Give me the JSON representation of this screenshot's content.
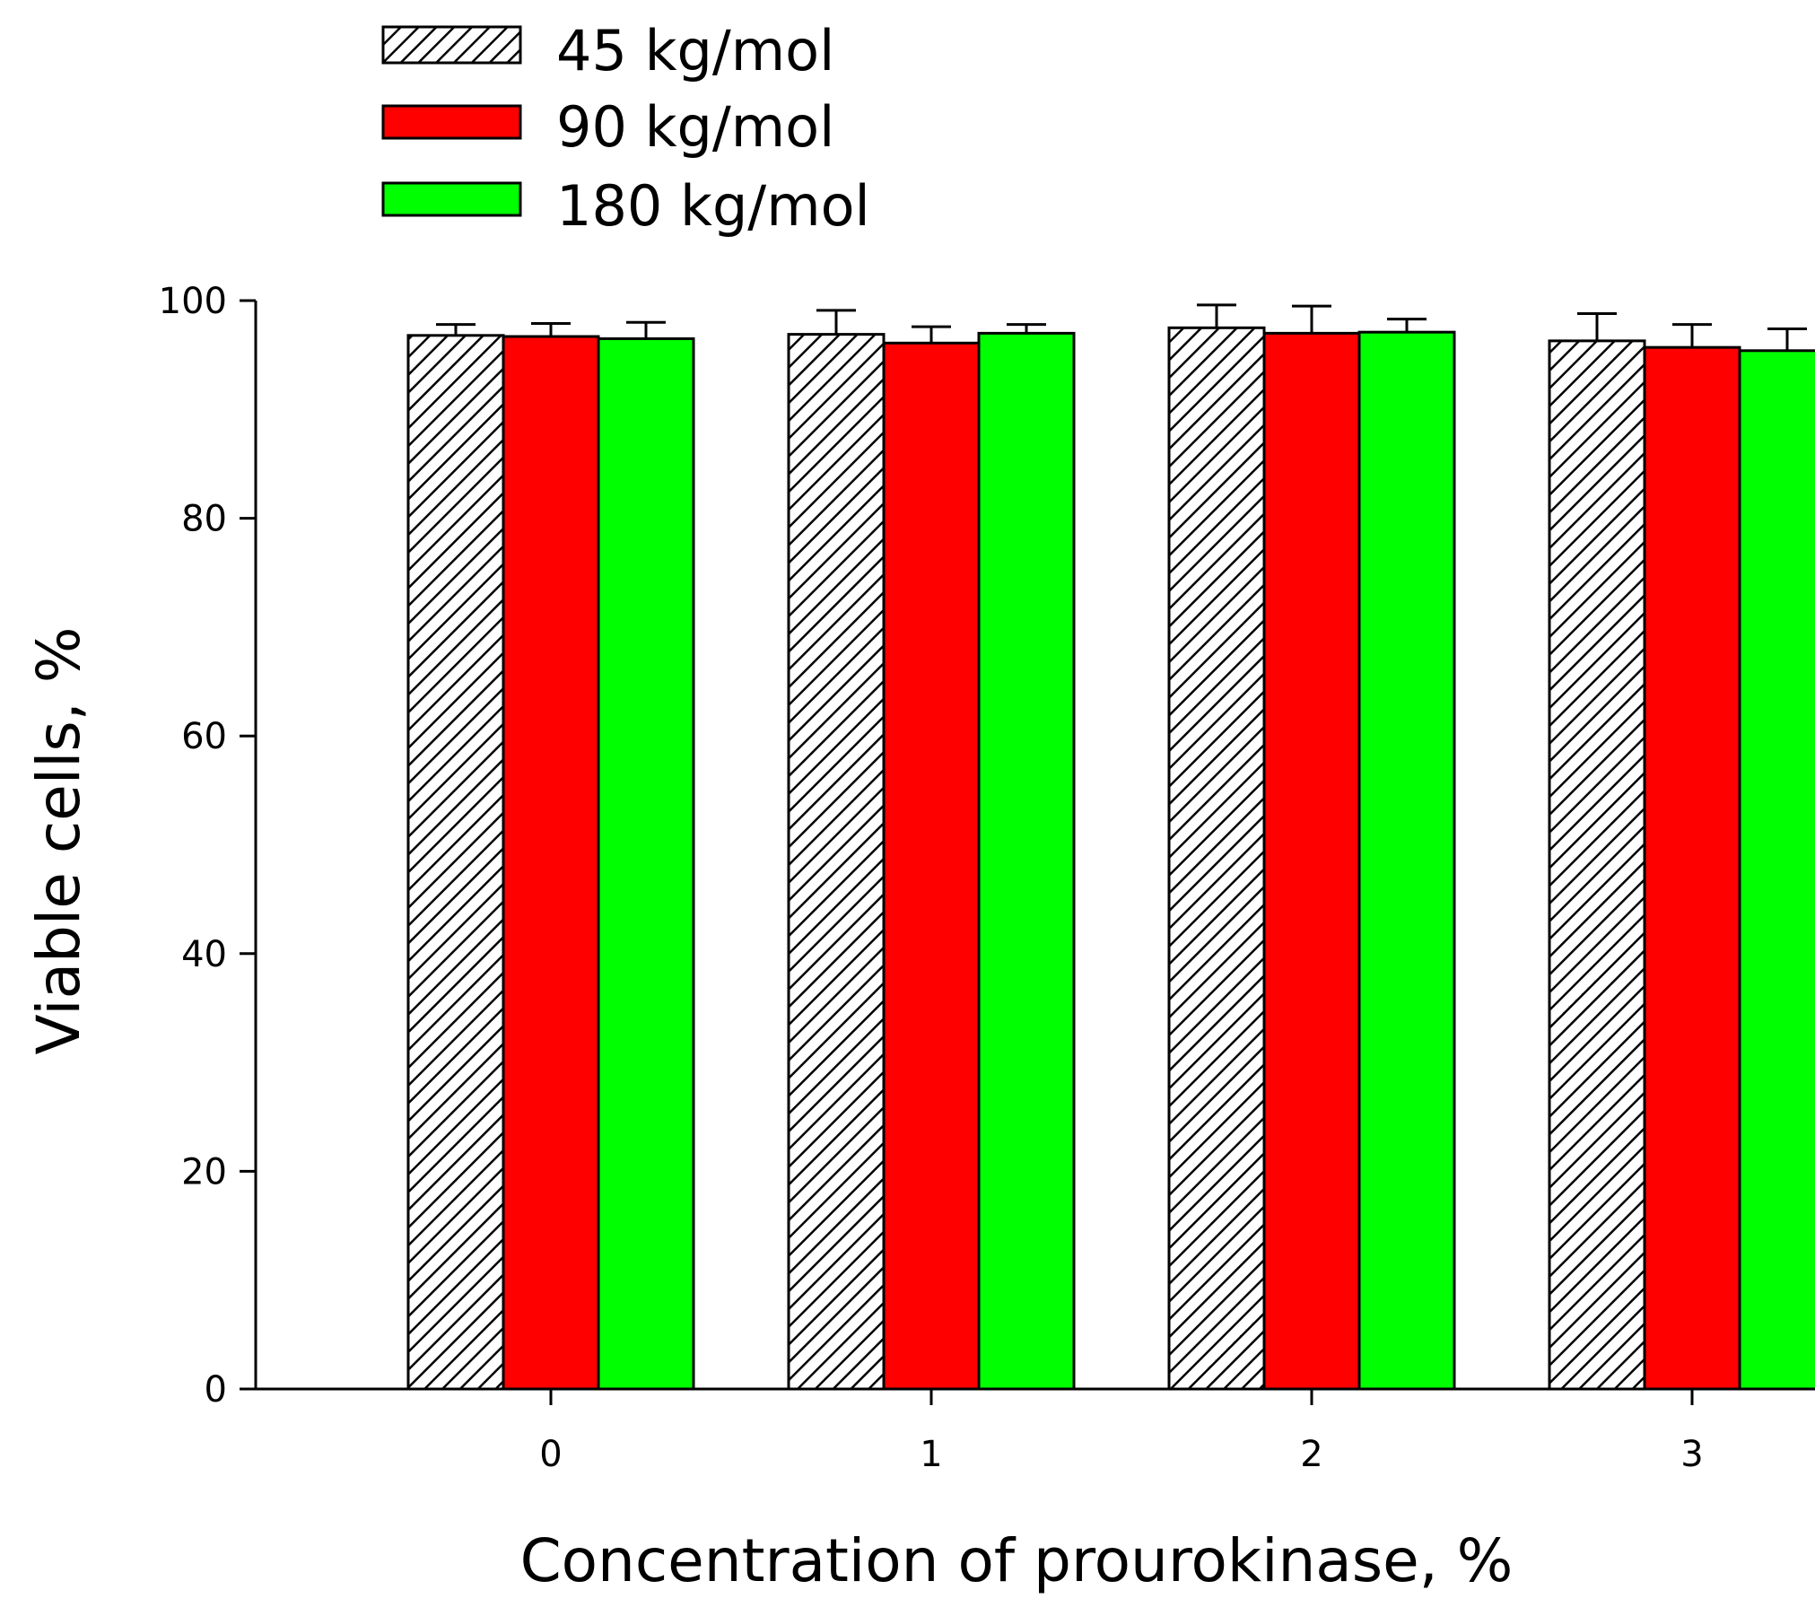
{
  "chart_data": {
    "type": "bar",
    "title": "",
    "xlabel": "Concentration of prourokinase, %",
    "ylabel": "Viable cells, %",
    "categories": [
      "0",
      "1",
      "2",
      "3"
    ],
    "ylim": [
      0,
      100
    ],
    "yticks": [
      "0",
      "20",
      "40",
      "60",
      "80",
      "100"
    ],
    "legend_position": "top-left",
    "series": [
      {
        "name": "45 kg/mol",
        "fill": "hatch",
        "color": "#ffffff",
        "values": [
          96.8,
          96.9,
          97.5,
          96.3
        ],
        "errors": [
          1.0,
          2.2,
          2.1,
          2.5
        ]
      },
      {
        "name": "90 kg/mol",
        "fill": "solid",
        "color": "#ff0000",
        "values": [
          96.7,
          96.1,
          97.0,
          95.7
        ],
        "errors": [
          1.2,
          1.5,
          2.5,
          2.1
        ]
      },
      {
        "name": "180 kg/mol",
        "fill": "solid",
        "color": "#00ff00",
        "values": [
          96.5,
          97.0,
          97.1,
          95.4
        ],
        "errors": [
          1.5,
          0.8,
          1.2,
          2.0
        ]
      }
    ]
  }
}
